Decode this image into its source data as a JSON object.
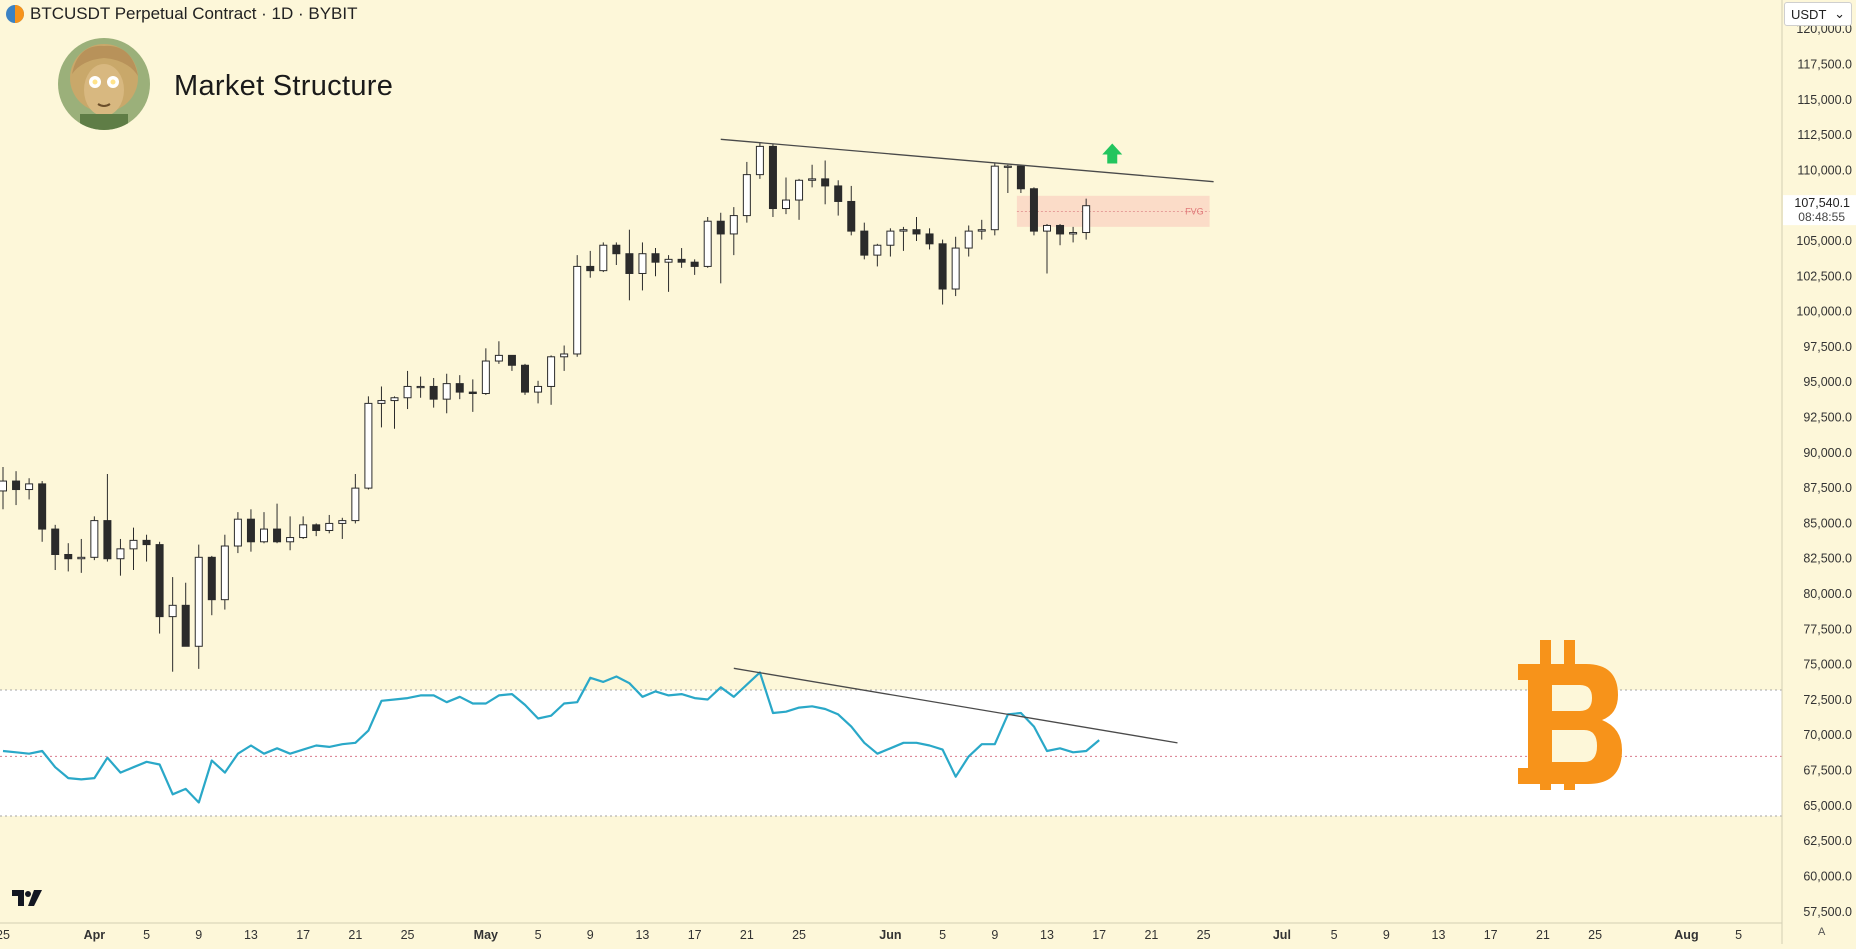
{
  "header": {
    "symbol_title": "BTCUSDT Perpetual Contract · 1D · BYBIT",
    "overlay_title": "Market Structure",
    "currency_selector": "USDT",
    "price_scale_button": "A"
  },
  "colors": {
    "background": "#fdf7d9",
    "rsi_line": "#2aa8c8",
    "bull_body": "#ffffff",
    "bear_body": "#2b2b2b",
    "fvg_zone": "#f9d3c2",
    "arrow": "#22c55e",
    "bitcoin_logo": "#f7931a"
  },
  "icons": [
    "bybit-symbol-icon",
    "avatar-illustration",
    "up-arrow-icon",
    "bitcoin-logo-icon",
    "tradingview-logo-icon",
    "chevron-down-icon"
  ],
  "chart_data": {
    "type": "candlestick",
    "title": "Market Structure",
    "interval": "1D",
    "exchange": "BYBIT",
    "y_axis": {
      "ticks": [
        57500,
        60000,
        62500,
        65000,
        67500,
        70000,
        72500,
        75000,
        77500,
        80000,
        82500,
        85000,
        87500,
        90000,
        92500,
        95000,
        97500,
        100000,
        102500,
        105000,
        107500,
        110000,
        112500,
        115000,
        117500,
        120000
      ],
      "tick_labels": [
        "57,500.0",
        "60,000.0",
        "62,500.0",
        "65,000.0",
        "67,500.0",
        "70,000.0",
        "72,500.0",
        "75,000.0",
        "77,500.0",
        "80,000.0",
        "82,500.0",
        "85,000.0",
        "87,500.0",
        "90,000.0",
        "92,500.0",
        "95,000.0",
        "97,500.0",
        "100,000.0",
        "102,500.0",
        "105,000.0",
        "107,500.0",
        "110,000.0",
        "112,500.0",
        "115,000.0",
        "117,500.0",
        "120,000.0"
      ],
      "range": [
        55500,
        121500
      ]
    },
    "x_axis": {
      "labels": [
        "25",
        "Apr",
        "5",
        "9",
        "13",
        "17",
        "21",
        "25",
        "May",
        "5",
        "9",
        "13",
        "17",
        "21",
        "25",
        "Jun",
        "5",
        "9",
        "13",
        "17",
        "21",
        "25",
        "Jul",
        "5",
        "9",
        "13",
        "17",
        "21",
        "25",
        "Aug",
        "5"
      ],
      "bold_labels": [
        "Apr",
        "May",
        "Jun",
        "Jul",
        "Aug"
      ]
    },
    "last_price": {
      "value": "107,540.1",
      "countdown": "08:48:55"
    },
    "candles": [
      {
        "date": "Mar 25",
        "o": 87300,
        "h": 89000,
        "l": 86000,
        "c": 88000
      },
      {
        "date": "Mar 26",
        "o": 88000,
        "h": 88700,
        "l": 86300,
        "c": 87400
      },
      {
        "date": "Mar 27",
        "o": 87400,
        "h": 88200,
        "l": 86700,
        "c": 87800
      },
      {
        "date": "Mar 28",
        "o": 87800,
        "h": 88000,
        "l": 83700,
        "c": 84600
      },
      {
        "date": "Mar 29",
        "o": 84600,
        "h": 84900,
        "l": 81700,
        "c": 82800
      },
      {
        "date": "Mar 30",
        "o": 82800,
        "h": 83600,
        "l": 81600,
        "c": 82500
      },
      {
        "date": "Mar 31",
        "o": 82500,
        "h": 83900,
        "l": 81500,
        "c": 82600
      },
      {
        "date": "Apr 1",
        "o": 82600,
        "h": 85500,
        "l": 82400,
        "c": 85200
      },
      {
        "date": "Apr 2",
        "o": 85200,
        "h": 88500,
        "l": 82300,
        "c": 82500
      },
      {
        "date": "Apr 3",
        "o": 82500,
        "h": 83900,
        "l": 81300,
        "c": 83200
      },
      {
        "date": "Apr 4",
        "o": 83200,
        "h": 84700,
        "l": 81700,
        "c": 83800
      },
      {
        "date": "Apr 5",
        "o": 83800,
        "h": 84200,
        "l": 82300,
        "c": 83500
      },
      {
        "date": "Apr 6",
        "o": 83500,
        "h": 83700,
        "l": 77200,
        "c": 78400
      },
      {
        "date": "Apr 7",
        "o": 78400,
        "h": 81200,
        "l": 74500,
        "c": 79200
      },
      {
        "date": "Apr 8",
        "o": 79200,
        "h": 80800,
        "l": 76300,
        "c": 76300
      },
      {
        "date": "Apr 9",
        "o": 76300,
        "h": 83500,
        "l": 74700,
        "c": 82600
      },
      {
        "date": "Apr 10",
        "o": 82600,
        "h": 82700,
        "l": 78500,
        "c": 79600
      },
      {
        "date": "Apr 11",
        "o": 79600,
        "h": 84200,
        "l": 78900,
        "c": 83400
      },
      {
        "date": "Apr 12",
        "o": 83400,
        "h": 85800,
        "l": 82900,
        "c": 85300
      },
      {
        "date": "Apr 13",
        "o": 85300,
        "h": 86000,
        "l": 83000,
        "c": 83700
      },
      {
        "date": "Apr 14",
        "o": 83700,
        "h": 85800,
        "l": 83600,
        "c": 84600
      },
      {
        "date": "Apr 15",
        "o": 84600,
        "h": 86400,
        "l": 83600,
        "c": 83700
      },
      {
        "date": "Apr 16",
        "o": 83700,
        "h": 85500,
        "l": 83100,
        "c": 84000
      },
      {
        "date": "Apr 17",
        "o": 84000,
        "h": 85500,
        "l": 83900,
        "c": 84900
      },
      {
        "date": "Apr 18",
        "o": 84900,
        "h": 85000,
        "l": 84100,
        "c": 84500
      },
      {
        "date": "Apr 19",
        "o": 84500,
        "h": 85600,
        "l": 84300,
        "c": 85000
      },
      {
        "date": "Apr 20",
        "o": 85000,
        "h": 85400,
        "l": 83900,
        "c": 85200
      },
      {
        "date": "Apr 21",
        "o": 85200,
        "h": 88500,
        "l": 85000,
        "c": 87500
      },
      {
        "date": "Apr 22",
        "o": 87500,
        "h": 94000,
        "l": 87400,
        "c": 93500
      },
      {
        "date": "Apr 23",
        "o": 93500,
        "h": 94700,
        "l": 91800,
        "c": 93700
      },
      {
        "date": "Apr 24",
        "o": 93700,
        "h": 94000,
        "l": 91700,
        "c": 93900
      },
      {
        "date": "Apr 25",
        "o": 93900,
        "h": 95800,
        "l": 93100,
        "c": 94700
      },
      {
        "date": "Apr 26",
        "o": 94700,
        "h": 95400,
        "l": 93900,
        "c": 94700
      },
      {
        "date": "Apr 27",
        "o": 94700,
        "h": 95300,
        "l": 93200,
        "c": 93800
      },
      {
        "date": "Apr 28",
        "o": 93800,
        "h": 95600,
        "l": 92800,
        "c": 94900
      },
      {
        "date": "Apr 29",
        "o": 94900,
        "h": 95500,
        "l": 93800,
        "c": 94300
      },
      {
        "date": "Apr 30",
        "o": 94300,
        "h": 95200,
        "l": 92900,
        "c": 94200
      },
      {
        "date": "May 1",
        "o": 94200,
        "h": 97400,
        "l": 94100,
        "c": 96500
      },
      {
        "date": "May 2",
        "o": 96500,
        "h": 97900,
        "l": 96300,
        "c": 96900
      },
      {
        "date": "May 3",
        "o": 96900,
        "h": 96900,
        "l": 95800,
        "c": 96200
      },
      {
        "date": "May 4",
        "o": 96200,
        "h": 96300,
        "l": 94100,
        "c": 94300
      },
      {
        "date": "May 5",
        "o": 94300,
        "h": 95100,
        "l": 93500,
        "c": 94700
      },
      {
        "date": "May 6",
        "o": 94700,
        "h": 96900,
        "l": 93400,
        "c": 96800
      },
      {
        "date": "May 7",
        "o": 96800,
        "h": 97600,
        "l": 95800,
        "c": 97000
      },
      {
        "date": "May 8",
        "o": 97000,
        "h": 104000,
        "l": 96800,
        "c": 103200
      },
      {
        "date": "May 9",
        "o": 103200,
        "h": 104300,
        "l": 102400,
        "c": 102900
      },
      {
        "date": "May 10",
        "o": 102900,
        "h": 104900,
        "l": 102800,
        "c": 104700
      },
      {
        "date": "May 11",
        "o": 104700,
        "h": 104900,
        "l": 103300,
        "c": 104100
      },
      {
        "date": "May 12",
        "o": 104100,
        "h": 105800,
        "l": 100800,
        "c": 102700
      },
      {
        "date": "May 13",
        "o": 102700,
        "h": 104900,
        "l": 101500,
        "c": 104100
      },
      {
        "date": "May 14",
        "o": 104100,
        "h": 104500,
        "l": 102500,
        "c": 103500
      },
      {
        "date": "May 15",
        "o": 103500,
        "h": 104000,
        "l": 101400,
        "c": 103700
      },
      {
        "date": "May 16",
        "o": 103700,
        "h": 104500,
        "l": 103100,
        "c": 103500
      },
      {
        "date": "May 17",
        "o": 103500,
        "h": 103700,
        "l": 102600,
        "c": 103200
      },
      {
        "date": "May 18",
        "o": 103200,
        "h": 106700,
        "l": 103100,
        "c": 106400
      },
      {
        "date": "May 19",
        "o": 106400,
        "h": 107000,
        "l": 102000,
        "c": 105500
      },
      {
        "date": "May 20",
        "o": 105500,
        "h": 107400,
        "l": 104000,
        "c": 106800
      },
      {
        "date": "May 21",
        "o": 106800,
        "h": 110600,
        "l": 106300,
        "c": 109700
      },
      {
        "date": "May 22",
        "o": 109700,
        "h": 112000,
        "l": 109400,
        "c": 111700
      },
      {
        "date": "May 23",
        "o": 111700,
        "h": 111900,
        "l": 106700,
        "c": 107300
      },
      {
        "date": "May 24",
        "o": 107300,
        "h": 109500,
        "l": 106900,
        "c": 107900
      },
      {
        "date": "May 25",
        "o": 107900,
        "h": 109400,
        "l": 106500,
        "c": 109300
      },
      {
        "date": "May 26",
        "o": 109300,
        "h": 110400,
        "l": 108800,
        "c": 109400
      },
      {
        "date": "May 27",
        "o": 109400,
        "h": 110700,
        "l": 107600,
        "c": 108900
      },
      {
        "date": "May 28",
        "o": 108900,
        "h": 109300,
        "l": 106800,
        "c": 107800
      },
      {
        "date": "May 29",
        "o": 107800,
        "h": 108900,
        "l": 105400,
        "c": 105700
      },
      {
        "date": "May 30",
        "o": 105700,
        "h": 106300,
        "l": 103700,
        "c": 104000
      },
      {
        "date": "May 31",
        "o": 104000,
        "h": 104800,
        "l": 103200,
        "c": 104700
      },
      {
        "date": "Jun 1",
        "o": 104700,
        "h": 105900,
        "l": 103900,
        "c": 105700
      },
      {
        "date": "Jun 2",
        "o": 105700,
        "h": 106000,
        "l": 104300,
        "c": 105800
      },
      {
        "date": "Jun 3",
        "o": 105800,
        "h": 106700,
        "l": 105000,
        "c": 105500
      },
      {
        "date": "Jun 4",
        "o": 105500,
        "h": 105900,
        "l": 104400,
        "c": 104800
      },
      {
        "date": "Jun 5",
        "o": 104800,
        "h": 105100,
        "l": 100500,
        "c": 101600
      },
      {
        "date": "Jun 6",
        "o": 101600,
        "h": 105300,
        "l": 101100,
        "c": 104500
      },
      {
        "date": "Jun 7",
        "o": 104500,
        "h": 106100,
        "l": 103900,
        "c": 105700
      },
      {
        "date": "Jun 8",
        "o": 105700,
        "h": 106500,
        "l": 105100,
        "c": 105800
      },
      {
        "date": "Jun 9",
        "o": 105800,
        "h": 110500,
        "l": 105400,
        "c": 110300
      },
      {
        "date": "Jun 10",
        "o": 110300,
        "h": 110400,
        "l": 108400,
        "c": 110300
      },
      {
        "date": "Jun 11",
        "o": 110300,
        "h": 110400,
        "l": 108400,
        "c": 108700
      },
      {
        "date": "Jun 12",
        "o": 108700,
        "h": 108800,
        "l": 105400,
        "c": 105700
      },
      {
        "date": "Jun 13",
        "o": 105700,
        "h": 106200,
        "l": 102700,
        "c": 106100
      },
      {
        "date": "Jun 14",
        "o": 106100,
        "h": 106200,
        "l": 104700,
        "c": 105500
      },
      {
        "date": "Jun 15",
        "o": 105500,
        "h": 106000,
        "l": 104900,
        "c": 105600
      },
      {
        "date": "Jun 16",
        "o": 105600,
        "h": 108000,
        "l": 105100,
        "c": 107500
      }
    ],
    "rsi_series": [
      67.8,
      67.7,
      67.6,
      67.8,
      66.6,
      65.8,
      65.7,
      65.8,
      67.3,
      66.2,
      66.6,
      67.0,
      66.8,
      64.6,
      65.0,
      64.0,
      67.1,
      66.2,
      67.6,
      68.2,
      67.6,
      68.0,
      67.6,
      67.9,
      68.2,
      68.1,
      68.3,
      68.4,
      69.3,
      71.5,
      71.6,
      71.7,
      71.9,
      71.9,
      71.4,
      71.8,
      71.3,
      71.3,
      71.9,
      72.0,
      71.2,
      70.2,
      70.4,
      71.3,
      71.4,
      73.2,
      72.9,
      73.3,
      72.8,
      71.8,
      72.2,
      71.9,
      72.0,
      71.7,
      71.6,
      72.5,
      71.8,
      72.7,
      73.6,
      70.6,
      70.7,
      71.0,
      71.1,
      70.9,
      70.5,
      69.6,
      68.4,
      67.6,
      68.0,
      68.4,
      68.4,
      68.2,
      67.9,
      65.9,
      67.4,
      68.3,
      68.3,
      70.5,
      70.6,
      69.6,
      67.8,
      68.0,
      67.7,
      67.8,
      68.6
    ],
    "rsi_band": {
      "upper": 72.3,
      "mid": 67.4,
      "lower": 63.0
    },
    "annotations": {
      "fvg_label": "FVG",
      "fvg_range": [
        106000,
        108200
      ],
      "price_trendline": [
        {
          "date": "May 19",
          "value": 112200
        },
        {
          "date": "Jun 25",
          "value": 109200
        }
      ],
      "rsi_trendline": [
        {
          "date": "May 20",
          "value": 73.9
        },
        {
          "date": "Jun 23",
          "value": 68.4
        }
      ],
      "arrow": {
        "date": "Jun 18",
        "value": 111200
      }
    }
  }
}
